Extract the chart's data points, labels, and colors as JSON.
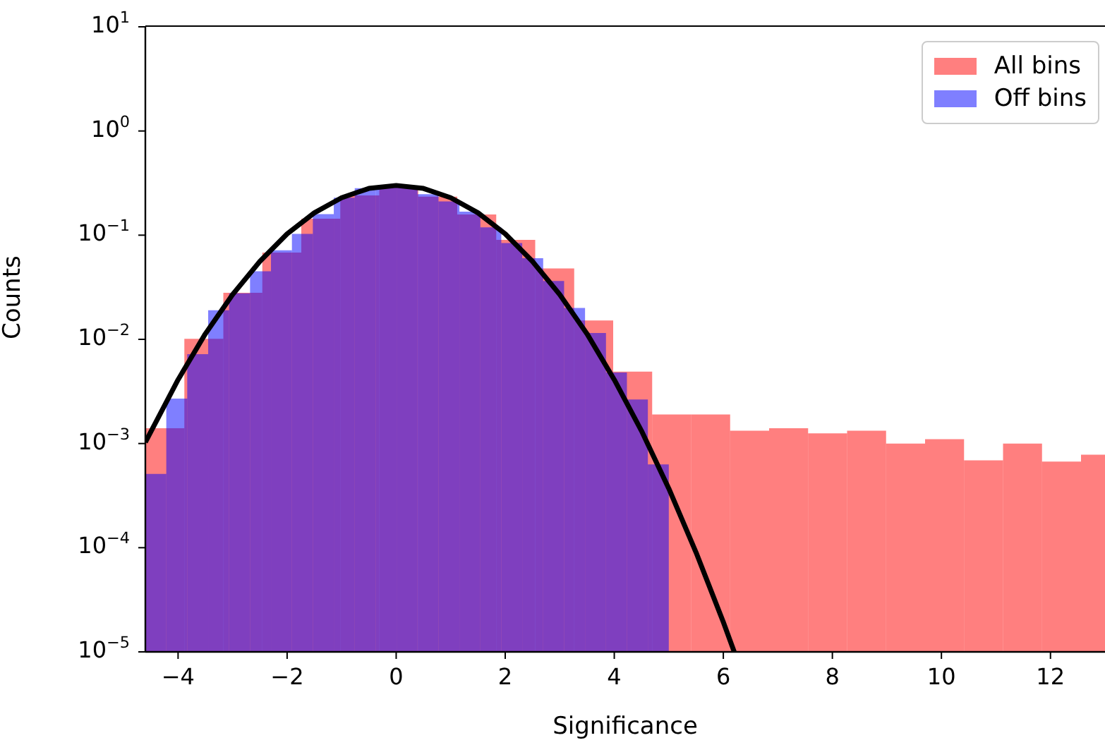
{
  "chart_data": {
    "type": "histogram",
    "xlabel": "Significance",
    "ylabel": "Counts",
    "log": "y",
    "legend": "top right",
    "xlim": [
      -4.6,
      13
    ],
    "ylim": [
      1e-05,
      10
    ],
    "xticks": [
      {
        "value": -4,
        "label": "−4"
      },
      {
        "value": -2,
        "label": "−2"
      },
      0,
      2,
      4,
      6,
      8,
      10,
      12
    ],
    "yticks": [
      {
        "value": 1e-05,
        "label": "10$^{−5}$"
      },
      {
        "value": 0.0001,
        "label": "10$^{−4}$"
      },
      {
        "value": 0.001,
        "label": "10$^{−3}$"
      },
      {
        "value": 0.01,
        "label": "10$^{−2}$"
      },
      {
        "value": 0.1,
        "label": "10$^{−1}$"
      },
      {
        "value": 1,
        "label": "10$^{0}$"
      },
      {
        "value": 10,
        "label": "10$^{1}$"
      }
    ],
    "series": [
      {
        "name": "All bins",
        "color": "#ff0000",
        "bins": [
          -4.6,
          -3.885,
          -3.17,
          -2.455,
          -1.74,
          -1.025,
          -0.31,
          0.405,
          1.12,
          1.835,
          2.55,
          3.265,
          3.98,
          4.695,
          5.41,
          6.125,
          6.84,
          7.555,
          8.27,
          8.985,
          9.7,
          10.415,
          11.13,
          11.845,
          12.56,
          13
        ],
        "values": [
          0.0014,
          0.0101,
          0.028,
          0.068,
          0.144,
          0.241,
          0.294,
          0.234,
          0.158,
          0.09,
          0.048,
          0.0152,
          0.0049,
          0.0019,
          0.0019,
          0.00133,
          0.0014,
          0.00125,
          0.00133,
          0.001,
          0.0011,
          0.00069,
          0.001,
          0.00067,
          0.00078
        ]
      },
      {
        "name": "Off bins",
        "color": "#0000ff",
        "bins": [
          -4.6,
          -4.216,
          -3.832,
          -3.448,
          -3.064,
          -2.68,
          -2.296,
          -1.912,
          -1.528,
          -1.144,
          -0.76,
          -0.376,
          0.008,
          0.392,
          0.776,
          1.16,
          1.544,
          1.928,
          2.312,
          2.696,
          3.08,
          3.464,
          3.848,
          4.232,
          4.616,
          5
        ],
        "values": [
          0.00051,
          0.0027,
          0.0072,
          0.019,
          0.0277,
          0.045,
          0.0716,
          0.103,
          0.159,
          0.229,
          0.282,
          0.3,
          0.29,
          0.247,
          0.211,
          0.168,
          0.119,
          0.084,
          0.06,
          0.0364,
          0.02,
          0.0115,
          0.0048,
          0.00265,
          0.00063
        ]
      },
      {
        "type": "line",
        "color": "#000000",
        "x": [
          -4.6,
          -4,
          -3.5,
          -3,
          -2.5,
          -2,
          -1.5,
          -1,
          -0.5,
          0,
          0.5,
          1,
          1.5,
          2,
          2.5,
          3,
          3.5,
          4,
          4.5,
          5,
          5.5,
          6,
          6.2
        ],
        "values": [
          0.00103,
          0.0041,
          0.0113,
          0.0269,
          0.056,
          0.103,
          0.164,
          0.229,
          0.281,
          0.3,
          0.281,
          0.229,
          0.164,
          0.103,
          0.056,
          0.0269,
          0.0113,
          0.0041,
          0.00132,
          0.00037,
          9e-05,
          1.93e-05,
          1e-05
        ]
      }
    ]
  }
}
